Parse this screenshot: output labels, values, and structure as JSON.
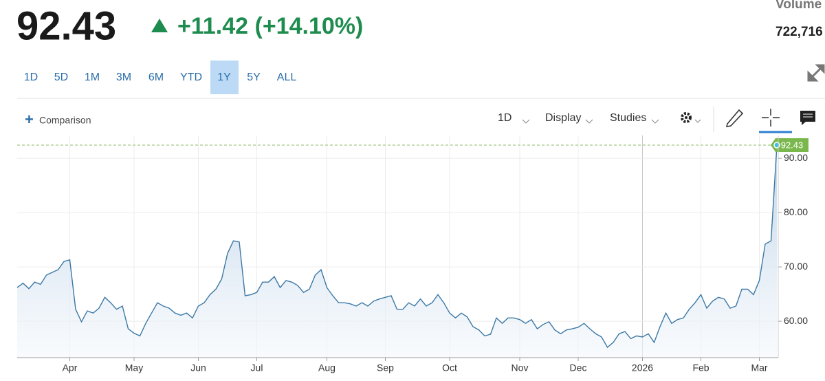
{
  "header": {
    "price": "92.43",
    "change": "+11.42 (+14.10%)",
    "volume_label": "Volume",
    "volume": "722,716"
  },
  "ranges": [
    "1D",
    "5D",
    "1M",
    "3M",
    "6M",
    "YTD",
    "1Y",
    "5Y",
    "ALL"
  ],
  "toolbar": {
    "comparison": "Comparison",
    "interval": "1D",
    "display": "Display",
    "studies": "Studies"
  },
  "chart_data": {
    "type": "line",
    "color": "#3b78a6",
    "categories": [
      null,
      null,
      null,
      null,
      null,
      null,
      null,
      null,
      null,
      "Apr",
      null,
      null,
      null,
      null,
      null,
      null,
      null,
      null,
      null,
      null,
      "May",
      null,
      null,
      null,
      null,
      null,
      null,
      null,
      null,
      null,
      null,
      "Jun",
      null,
      null,
      null,
      null,
      null,
      null,
      null,
      null,
      null,
      "Jul",
      null,
      null,
      null,
      null,
      null,
      null,
      null,
      null,
      null,
      null,
      null,
      "Aug",
      null,
      null,
      null,
      null,
      null,
      null,
      null,
      null,
      null,
      "Sep",
      null,
      null,
      null,
      null,
      null,
      null,
      null,
      null,
      null,
      null,
      "Oct",
      null,
      null,
      null,
      null,
      null,
      null,
      null,
      null,
      null,
      null,
      null,
      "Nov",
      null,
      null,
      null,
      null,
      null,
      null,
      null,
      null,
      null,
      "Dec",
      null,
      null,
      null,
      null,
      null,
      null,
      null,
      null,
      null,
      null,
      "2026",
      null,
      null,
      null,
      null,
      null,
      null,
      null,
      null,
      null,
      "Feb",
      null,
      null,
      null,
      null,
      null,
      null,
      null,
      null,
      null,
      "Mar",
      null,
      null,
      null
    ],
    "values": [
      66.2,
      67,
      66,
      67.2,
      66.8,
      68.5,
      69,
      69.5,
      71,
      71.3,
      62.2,
      59.9,
      61.9,
      61.5,
      62.4,
      64.4,
      63.4,
      62.2,
      62.8,
      58.6,
      57.8,
      57.3,
      59.6,
      61.5,
      63.4,
      62.8,
      62.4,
      61.5,
      61.1,
      61.5,
      60.6,
      62.8,
      63.4,
      64.9,
      65.9,
      67.8,
      72.5,
      74.8,
      74.6,
      64.7,
      64.9,
      65.3,
      67.2,
      67.2,
      68.2,
      66.2,
      67.5,
      67.2,
      66.6,
      65.3,
      65.9,
      68.5,
      69.5,
      66.2,
      64.7,
      63.4,
      63.4,
      63.2,
      62.8,
      63.4,
      62.8,
      63.7,
      64.1,
      64.4,
      64.7,
      62.2,
      62.2,
      63.4,
      62.8,
      64.1,
      62.8,
      63.4,
      64.9,
      63.4,
      61.5,
      60.6,
      61.5,
      60.8,
      59,
      58.4,
      57.3,
      57.6,
      60.6,
      59.6,
      60.6,
      60.6,
      60.3,
      59.6,
      60.3,
      58.6,
      59.4,
      59.9,
      58.4,
      57.7,
      58.4,
      58.6,
      58.9,
      59.6,
      58.6,
      57.7,
      57.1,
      55.2,
      56.1,
      57.7,
      58.1,
      56.8,
      57.3,
      57.1,
      57.7,
      56.1,
      59,
      61.5,
      59.6,
      60.3,
      60.6,
      62.2,
      63.4,
      64.9,
      62.4,
      63.7,
      64.4,
      64.1,
      62.4,
      62.8,
      65.9,
      65.9,
      64.9,
      67.5,
      74.2,
      74.8,
      92.43
    ],
    "ylim": [
      53.3,
      94.2
    ],
    "yticks": [
      {
        "value": 60,
        "label": "60.00"
      },
      {
        "value": 70,
        "label": "70.00"
      },
      {
        "value": 80,
        "label": "80.00"
      },
      {
        "value": 90,
        "label": "90.00"
      }
    ],
    "grid": true
  }
}
